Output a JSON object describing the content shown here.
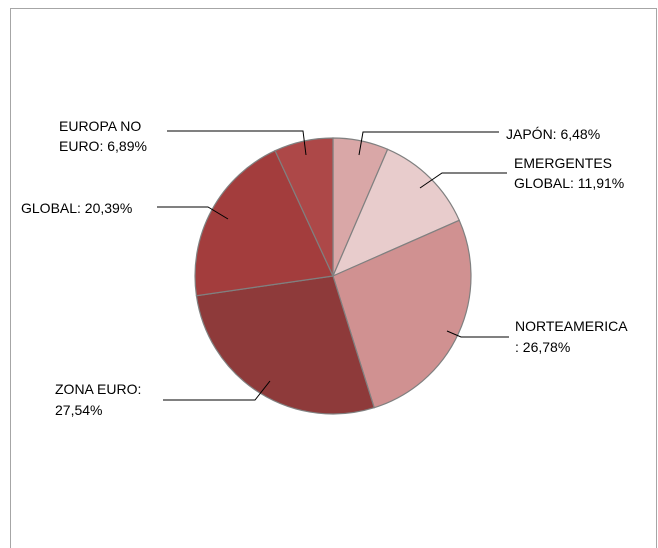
{
  "chart_data": {
    "type": "pie",
    "title": "",
    "slices": [
      {
        "name": "JAPÓN",
        "value": 6.48,
        "label_lines": [
          "JAPÓN: 6,48%"
        ],
        "color": "#d9a7a7"
      },
      {
        "name": "EMERGENTES GLOBAL",
        "value": 11.91,
        "label_lines": [
          "EMERGENTES",
          "GLOBAL: 11,91%"
        ],
        "color": "#e8cccc"
      },
      {
        "name": "NORTEAMERICA",
        "value": 26.78,
        "label_lines": [
          "NORTEAMERICA",
          ": 26,78%"
        ],
        "color": "#d09191"
      },
      {
        "name": "ZONA EURO",
        "value": 27.54,
        "label_lines": [
          "ZONA EURO:",
          "27,54%"
        ],
        "color": "#8e3a3a"
      },
      {
        "name": "GLOBAL",
        "value": 20.39,
        "label_lines": [
          "GLOBAL: 20,39%"
        ],
        "color": "#a33d3d"
      },
      {
        "name": "EUROPA NO EURO",
        "value": 6.89,
        "label_lines": [
          "EUROPA NO",
          "EURO: 6,89%"
        ],
        "color": "#ad4848"
      }
    ],
    "legend": "none"
  }
}
